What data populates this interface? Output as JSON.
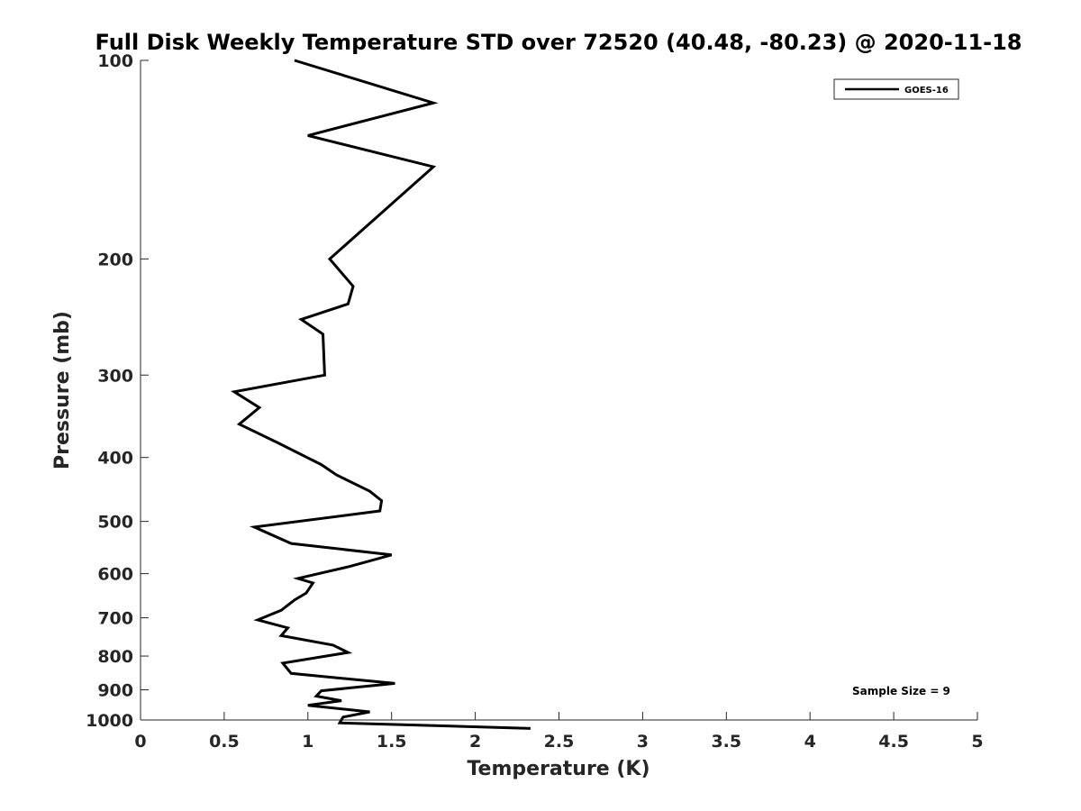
{
  "chart_data": {
    "type": "line",
    "title": "Full Disk Weekly Temperature STD over 72520 (40.48, -80.23) @ 2020-11-18",
    "xlabel": "Temperature (K)",
    "ylabel": "Pressure (mb)",
    "xlim": [
      0,
      5
    ],
    "ylim": [
      100,
      1000
    ],
    "y_scale": "log",
    "y_reversed": true,
    "grid": false,
    "legend_position": "top-right",
    "x_ticks": [
      "0",
      "0.5",
      "1",
      "1.5",
      "2",
      "2.5",
      "3",
      "3.5",
      "4",
      "4.5",
      "5"
    ],
    "y_ticks": [
      "100",
      "200",
      "300",
      "400",
      "500",
      "600",
      "700",
      "800",
      "900",
      "1000"
    ],
    "series": [
      {
        "name": "GOES-16",
        "color": "#000000",
        "x": [
          0.92,
          1.75,
          1.0,
          1.75,
          1.13,
          1.27,
          1.24,
          0.96,
          1.09,
          1.1,
          0.56,
          0.71,
          0.59,
          0.82,
          1.08,
          1.17,
          1.37,
          1.44,
          1.43,
          0.68,
          0.9,
          1.5,
          1.25,
          0.94,
          1.03,
          0.99,
          0.92,
          0.84,
          0.7,
          0.88,
          0.84,
          1.15,
          1.24,
          0.85,
          0.9,
          1.52,
          1.08,
          1.05,
          1.2,
          1.0,
          1.37,
          1.21,
          1.19,
          2.33
        ],
        "y": [
          100,
          116,
          130,
          145,
          200,
          220,
          234,
          247,
          260,
          300,
          318,
          336,
          356,
          380,
          410,
          425,
          450,
          465,
          482,
          510,
          540,
          562,
          585,
          610,
          620,
          642,
          658,
          682,
          705,
          725,
          745,
          770,
          790,
          820,
          850,
          880,
          903,
          920,
          935,
          950,
          972,
          990,
          1010,
          1030
        ]
      }
    ],
    "annotations": [
      "Sample Size = 9"
    ]
  }
}
